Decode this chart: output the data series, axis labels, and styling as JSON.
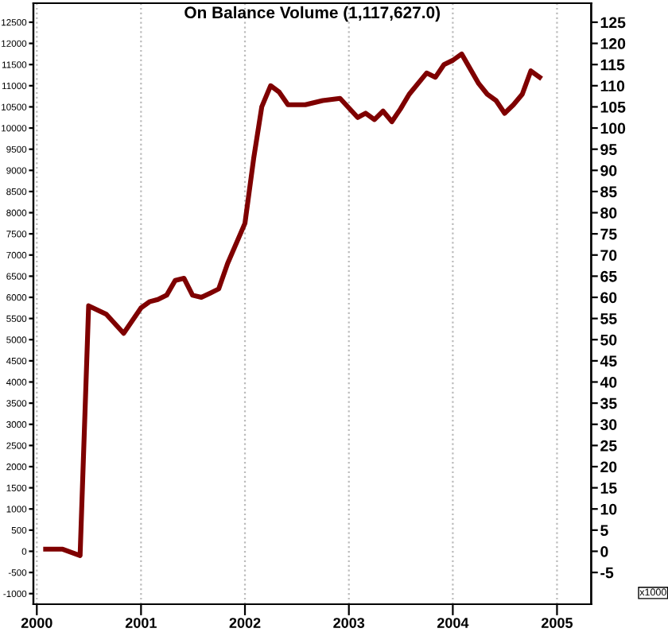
{
  "chart_data": {
    "type": "line",
    "title": "On Balance Volume (1,117,627.0)",
    "x": [
      "2000-02",
      "2000-04",
      "2000-06",
      "2000-07",
      "2000-09",
      "2000-11",
      "2001-01",
      "2001-02",
      "2001-03",
      "2001-04",
      "2001-05",
      "2001-06",
      "2001-07",
      "2001-08",
      "2001-09",
      "2001-10",
      "2001-11",
      "2002-01",
      "2002-02",
      "2002-03",
      "2002-04",
      "2002-05",
      "2002-06",
      "2002-08",
      "2002-10",
      "2002-12",
      "2003-02",
      "2003-03",
      "2003-04",
      "2003-05",
      "2003-06",
      "2003-07",
      "2003-08",
      "2003-10",
      "2003-11",
      "2003-12",
      "2004-01",
      "2004-02",
      "2004-04",
      "2004-05",
      "2004-06",
      "2004-07",
      "2004-08",
      "2004-09",
      "2004-10",
      "2004-11"
    ],
    "series": [
      {
        "color": "#7f0000",
        "values": [
          0.5,
          0.5,
          -1,
          58,
          56,
          51.5,
          57.5,
          59,
          59.5,
          60.5,
          64,
          64.5,
          60.5,
          60,
          61,
          62,
          68,
          77.5,
          93,
          105,
          110,
          108.5,
          105.5,
          105.5,
          106.5,
          107,
          102.5,
          103.5,
          102,
          104,
          101.5,
          104.5,
          108,
          113,
          112,
          115,
          116,
          117.5,
          110.5,
          108,
          106.5,
          103.5,
          105.5,
          108,
          113.5,
          112
        ]
      }
    ],
    "xlim": [
      "1999-12-20",
      "2005-05-01"
    ],
    "xticks": [
      {
        "value": "2000-01-01",
        "label": "2000"
      },
      {
        "value": "2001-01-01",
        "label": "2001"
      },
      {
        "value": "2002-01-01",
        "label": "2002"
      },
      {
        "value": "2003-01-01",
        "label": "2003"
      },
      {
        "value": "2004-01-01",
        "label": "2004"
      },
      {
        "value": "2005-01-01",
        "label": "2005"
      }
    ],
    "ylim": [
      -12.5,
      129.5
    ],
    "yticks": [
      -5,
      0,
      5,
      10,
      15,
      20,
      25,
      30,
      35,
      40,
      45,
      50,
      55,
      60,
      65,
      70,
      75,
      80,
      85,
      90,
      95,
      100,
      105,
      110,
      115,
      120,
      125
    ],
    "y2lim": [
      -1250,
      12950
    ],
    "y2ticks": [
      -1000,
      -500,
      0,
      500,
      1000,
      1500,
      2000,
      2500,
      3000,
      3500,
      4000,
      4500,
      5000,
      5500,
      6000,
      6500,
      7000,
      7500,
      8000,
      8500,
      9000,
      9500,
      10000,
      10500,
      11000,
      11500,
      12000,
      12500
    ],
    "annotations": [
      "x1000"
    ],
    "grid": "x",
    "legend": false,
    "marker": "none",
    "line_style": "solid"
  }
}
